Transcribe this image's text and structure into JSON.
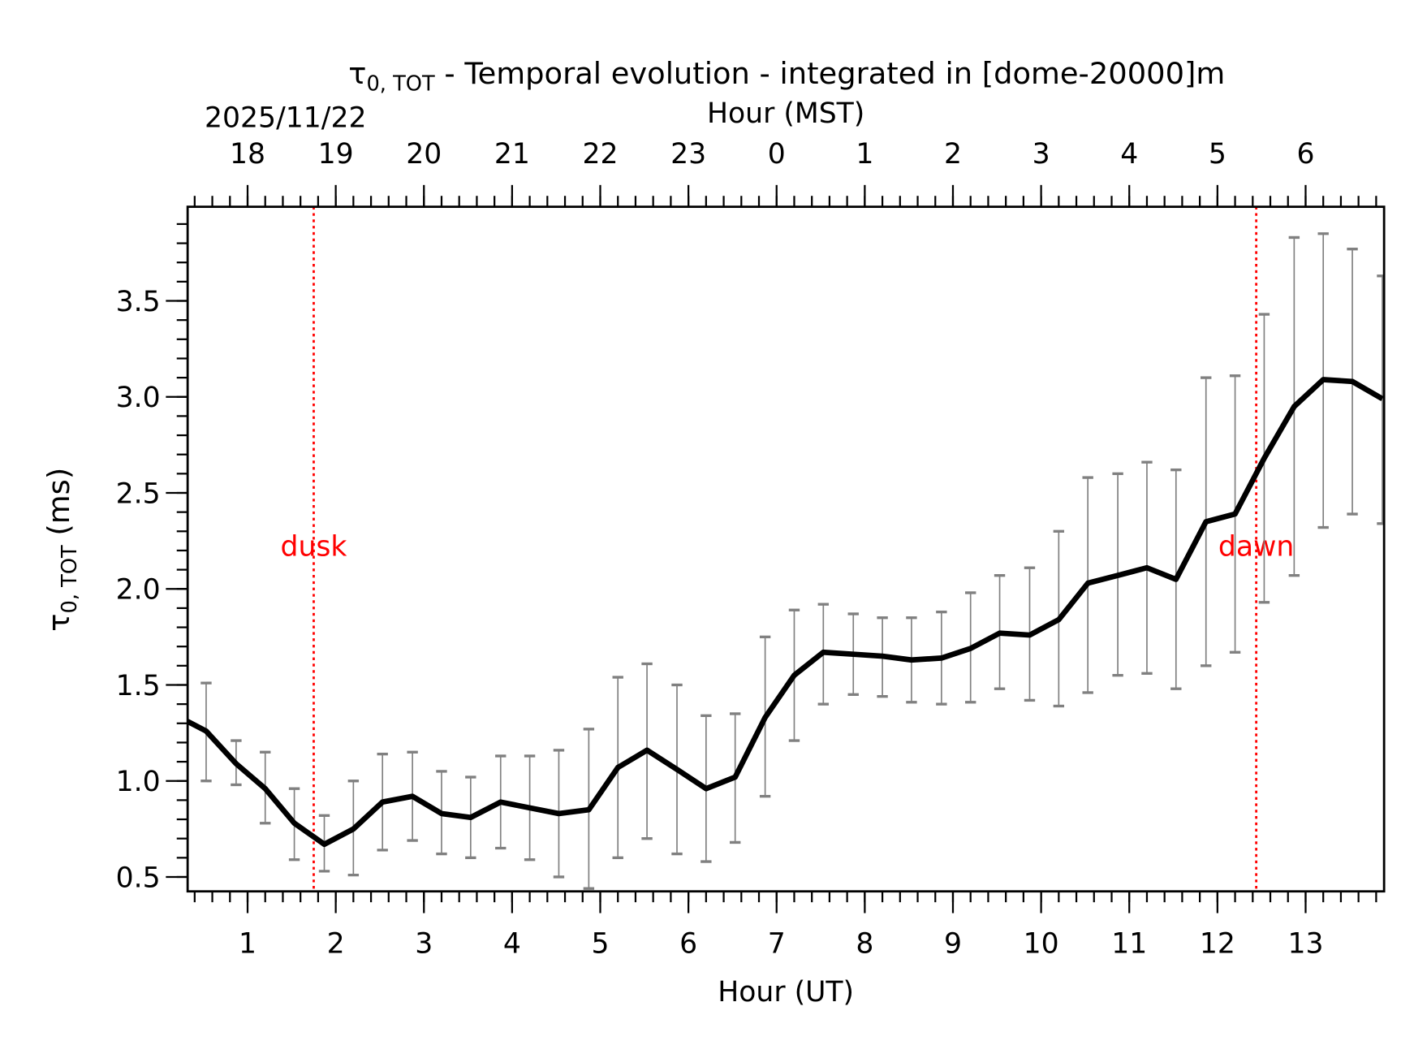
{
  "chart_data": {
    "type": "line",
    "title": "τ0,TOT - Temporal evolution - integrated in [dome-20000]m",
    "title_symbol": "τ",
    "title_subscript": "0, TOT",
    "title_rest": " - Temporal evolution - integrated in [dome-20000]m",
    "date_label": "2025/11/22",
    "xlabel": "Hour (UT)",
    "x2label": "Hour (MST)",
    "ylabel_symbol": "τ",
    "ylabel_subscript": "0, TOT",
    "ylabel_rest": " (ms)",
    "xlim": [
      0.32,
      13.89
    ],
    "ylim": [
      0.425,
      3.99
    ],
    "x_ticks": [
      1,
      2,
      3,
      4,
      5,
      6,
      7,
      8,
      9,
      10,
      11,
      12,
      13
    ],
    "x2_tick_labels": [
      "18",
      "19",
      "20",
      "21",
      "22",
      "23",
      "0",
      "1",
      "2",
      "3",
      "4",
      "5",
      "6"
    ],
    "y_ticks": [
      "0.5",
      "1.0",
      "1.5",
      "2.0",
      "2.5",
      "3.0",
      "3.5"
    ],
    "grid": false,
    "colors": {
      "line": "#000000",
      "errorbar": "#808080",
      "markers": "#ff0000"
    },
    "markers": [
      {
        "label": "dusk",
        "x": 1.75
      },
      {
        "label": "dawn",
        "x": 12.44
      }
    ],
    "series": [
      {
        "x": [
          0.32,
          0.53,
          0.87,
          1.2,
          1.53,
          1.87,
          2.2,
          2.53,
          2.87,
          3.2,
          3.53,
          3.87,
          4.2,
          4.53,
          4.87,
          5.2,
          5.53,
          5.87,
          6.2,
          6.53,
          6.87,
          7.2,
          7.53,
          7.87,
          8.2,
          8.53,
          8.87,
          9.2,
          9.53,
          9.87,
          10.2,
          10.53,
          10.87,
          11.2,
          11.53,
          11.87,
          12.2,
          12.53,
          12.87,
          13.2,
          13.53,
          13.87
        ],
        "y": [
          1.31,
          1.26,
          1.09,
          0.96,
          0.78,
          0.67,
          0.75,
          0.89,
          0.92,
          0.83,
          0.81,
          0.89,
          0.86,
          0.83,
          0.85,
          1.07,
          1.16,
          1.06,
          0.96,
          1.02,
          1.33,
          1.55,
          1.67,
          1.66,
          1.65,
          1.63,
          1.64,
          1.69,
          1.77,
          1.76,
          1.84,
          2.03,
          2.07,
          2.11,
          2.05,
          2.35,
          2.39,
          2.68,
          2.95,
          3.09,
          3.08,
          2.99
        ],
        "err_high": [
          null,
          1.51,
          1.21,
          1.15,
          0.96,
          0.82,
          1.0,
          1.14,
          1.15,
          1.05,
          1.02,
          1.13,
          1.13,
          1.16,
          1.27,
          1.54,
          1.61,
          1.5,
          1.34,
          1.35,
          1.75,
          1.89,
          1.92,
          1.87,
          1.85,
          1.85,
          1.88,
          1.98,
          2.07,
          2.11,
          2.3,
          2.58,
          2.6,
          2.66,
          2.62,
          3.1,
          3.11,
          3.43,
          3.83,
          3.85,
          3.77,
          3.63
        ],
        "err_low": [
          null,
          1.0,
          0.98,
          0.78,
          0.59,
          0.53,
          0.51,
          0.64,
          0.69,
          0.62,
          0.6,
          0.65,
          0.59,
          0.5,
          0.44,
          0.6,
          0.7,
          0.62,
          0.58,
          0.68,
          0.92,
          1.21,
          1.4,
          1.45,
          1.44,
          1.41,
          1.4,
          1.41,
          1.48,
          1.42,
          1.39,
          1.46,
          1.55,
          1.56,
          1.48,
          1.6,
          1.67,
          1.93,
          2.07,
          2.32,
          2.39,
          2.34
        ]
      }
    ]
  }
}
